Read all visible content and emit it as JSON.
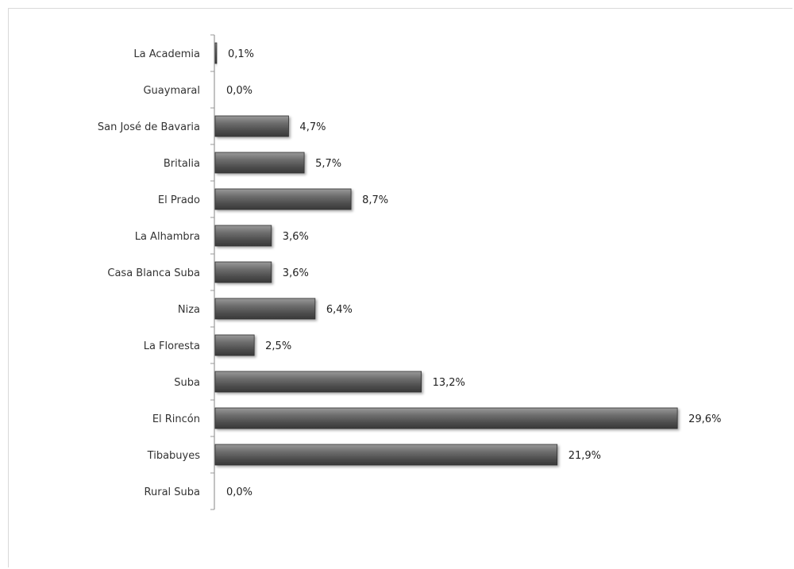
{
  "chart_data": {
    "type": "bar",
    "orientation": "horizontal",
    "categories": [
      "La Academia",
      "Guaymaral",
      "San José de Bavaria",
      "Britalia",
      "El Prado",
      "La Alhambra",
      "Casa Blanca Suba",
      "Niza",
      "La Floresta",
      "Suba",
      "El Rincón",
      "Tibabuyes",
      "Rural Suba"
    ],
    "values": [
      0.1,
      0.0,
      4.7,
      5.7,
      8.7,
      3.6,
      3.6,
      6.4,
      2.5,
      13.2,
      29.6,
      21.9,
      0.0
    ],
    "value_labels": [
      "0,1%",
      "0,0%",
      "4,7%",
      "5,7%",
      "8,7%",
      "3,6%",
      "3,6%",
      "6,4%",
      "2,5%",
      "13,2%",
      "29,6%",
      "21,9%",
      "0,0%"
    ],
    "unit": "%",
    "xlim": [
      0,
      30
    ],
    "grid": false,
    "legend": "none",
    "bar_color": "#5a5a5a",
    "axis_color": "#999999"
  }
}
